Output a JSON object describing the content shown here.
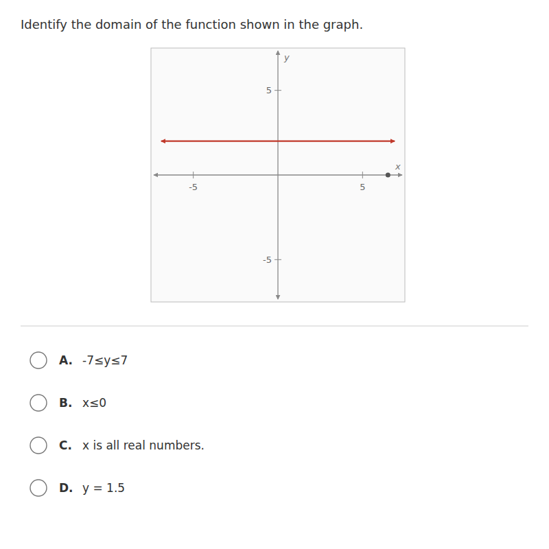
{
  "chart_data": {
    "type": "line",
    "title": "Identify the domain of the function shown in the graph.",
    "x_label": "x",
    "y_label": "y",
    "xlim": [
      -7.5,
      7.5
    ],
    "ylim": [
      -7.5,
      7.5
    ],
    "xticks": [
      -5,
      5
    ],
    "yticks": [
      -5,
      5
    ],
    "series": [
      {
        "type": "line",
        "color": "#c0392b",
        "x": [
          -6.9,
          6.9
        ],
        "values": [
          2.0,
          2.0
        ]
      },
      {
        "type": "scatter",
        "color": "#555555",
        "x": [
          6.5
        ],
        "values": [
          0.0
        ]
      }
    ],
    "annotations": [
      {
        "label": "A.",
        "text": "-7≤y≤7"
      },
      {
        "label": "B.",
        "text": "x≤0"
      },
      {
        "label": "C.",
        "text": "x is all real numbers."
      },
      {
        "label": "D.",
        "text": "y = 1.5"
      }
    ]
  }
}
